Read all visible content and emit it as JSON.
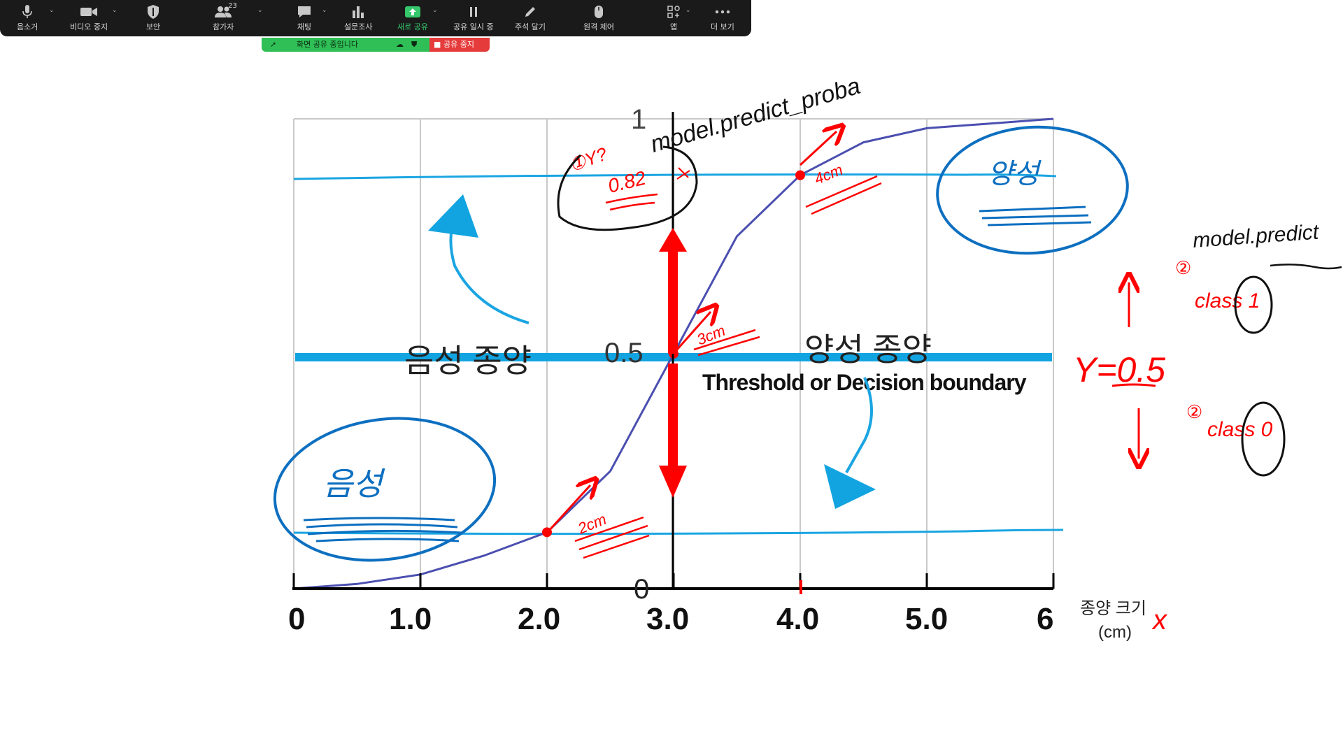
{
  "toolbar": {
    "mute": "음소거",
    "video": "비디오 중지",
    "security": "보안",
    "participants": "참가자",
    "participants_count": "23",
    "chat": "채팅",
    "polls": "설문조사",
    "new_share": "새로 공유",
    "pause_share": "공유 일시 중",
    "annotate": "주석 달기",
    "remote_control": "원격 제어",
    "apps": "앱",
    "more": "더 보기"
  },
  "share_banner": {
    "status": "화면 공유 중입니다",
    "stop": "공유 중지"
  },
  "colors": {
    "toolbar_bg": "#1a1a1a",
    "share_green": "#2fbf56",
    "stop_red": "#e53b3b",
    "curve_blue": "#4b4fb0",
    "annot_red": "#ff0000",
    "annot_blue": "#0d6fc0",
    "threshold_blue": "#12a4e0"
  },
  "slide": {
    "y_ticks": [
      "1",
      "0.5",
      "0"
    ],
    "x_ticks": [
      "0",
      "1.0",
      "2.0",
      "3.0",
      "4.0",
      "5.0",
      "6"
    ],
    "x_axis_label_line1": "종양 크기",
    "x_axis_label_line2": "(cm)",
    "negative_region": "음성 종양",
    "positive_region": "양성 종양",
    "threshold_label": "Threshold or Decision boundary"
  },
  "annotations": {
    "predict_proba": "model.predict_proba",
    "predict": "model.predict",
    "prob_0_82": "0.82",
    "circled_marker": "①Y?",
    "x_mark": "x",
    "pt_4cm": "4cm",
    "pt_3cm": "3cm",
    "pt_2cm": "2cm",
    "y_threshold": "Y=0.5",
    "class1": "class 1",
    "class0": "class 0",
    "num2_top": "②",
    "num2_bottom": "②",
    "positive_handwritten": "양성",
    "negative_handwritten": "음성"
  },
  "chart_data": {
    "type": "line",
    "title": "",
    "xlabel": "종양 크기 (cm)",
    "ylabel": "",
    "xlim": [
      0,
      6
    ],
    "ylim": [
      0,
      1
    ],
    "x_ticks": [
      0,
      1,
      2,
      3,
      4,
      5,
      6
    ],
    "y_ticks": [
      0,
      0.5,
      1
    ],
    "grid": true,
    "threshold": 0.5,
    "series": [
      {
        "x": [
          0,
          0.5,
          1.0,
          1.5,
          2.0,
          2.5,
          3.0,
          3.5,
          4.0,
          4.5,
          5.0,
          5.5,
          6.0
        ],
        "values": [
          0.0,
          0.01,
          0.03,
          0.07,
          0.12,
          0.25,
          0.5,
          0.75,
          0.88,
          0.95,
          0.98,
          0.99,
          1.0
        ]
      }
    ],
    "highlighted_points": [
      {
        "x": 2.0,
        "y": 0.12
      },
      {
        "x": 3.0,
        "y": 0.5
      },
      {
        "x": 4.0,
        "y": 0.88
      }
    ]
  }
}
